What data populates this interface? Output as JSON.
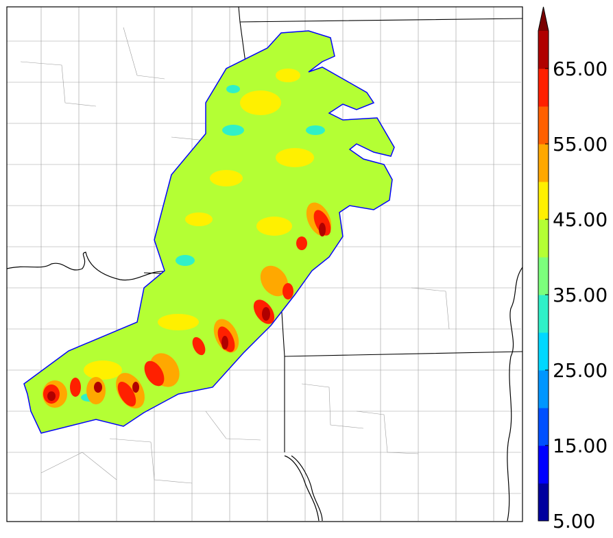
{
  "colorbar": {
    "bands": [
      {
        "from": 5,
        "to": 10,
        "color": "#00009e"
      },
      {
        "from": 10,
        "to": 15,
        "color": "#0000ff"
      },
      {
        "from": 15,
        "to": 20,
        "color": "#0050ff"
      },
      {
        "from": 20,
        "to": 25,
        "color": "#0096ff"
      },
      {
        "from": 25,
        "to": 30,
        "color": "#00d8ff"
      },
      {
        "from": 30,
        "to": 35,
        "color": "#30f0c8"
      },
      {
        "from": 35,
        "to": 40,
        "color": "#7cff7c"
      },
      {
        "from": 40,
        "to": 45,
        "color": "#b4ff34"
      },
      {
        "from": 45,
        "to": 50,
        "color": "#fff000"
      },
      {
        "from": 50,
        "to": 55,
        "color": "#ffa800"
      },
      {
        "from": 55,
        "to": 60,
        "color": "#ff6000"
      },
      {
        "from": 60,
        "to": 65,
        "color": "#ff2000"
      },
      {
        "from": 65,
        "to": 70,
        "color": "#b00000"
      }
    ],
    "extend_max_color": "#7a0000",
    "tick_labels": [
      "5.00",
      "15.00",
      "25.00",
      "35.00",
      "45.00",
      "55.00",
      "65.00"
    ]
  },
  "map": {
    "features": [
      "state-borders",
      "county-borders",
      "rivers"
    ],
    "field_colors": {
      "background": "#b4ff34",
      "edge": "#0000ff"
    }
  }
}
